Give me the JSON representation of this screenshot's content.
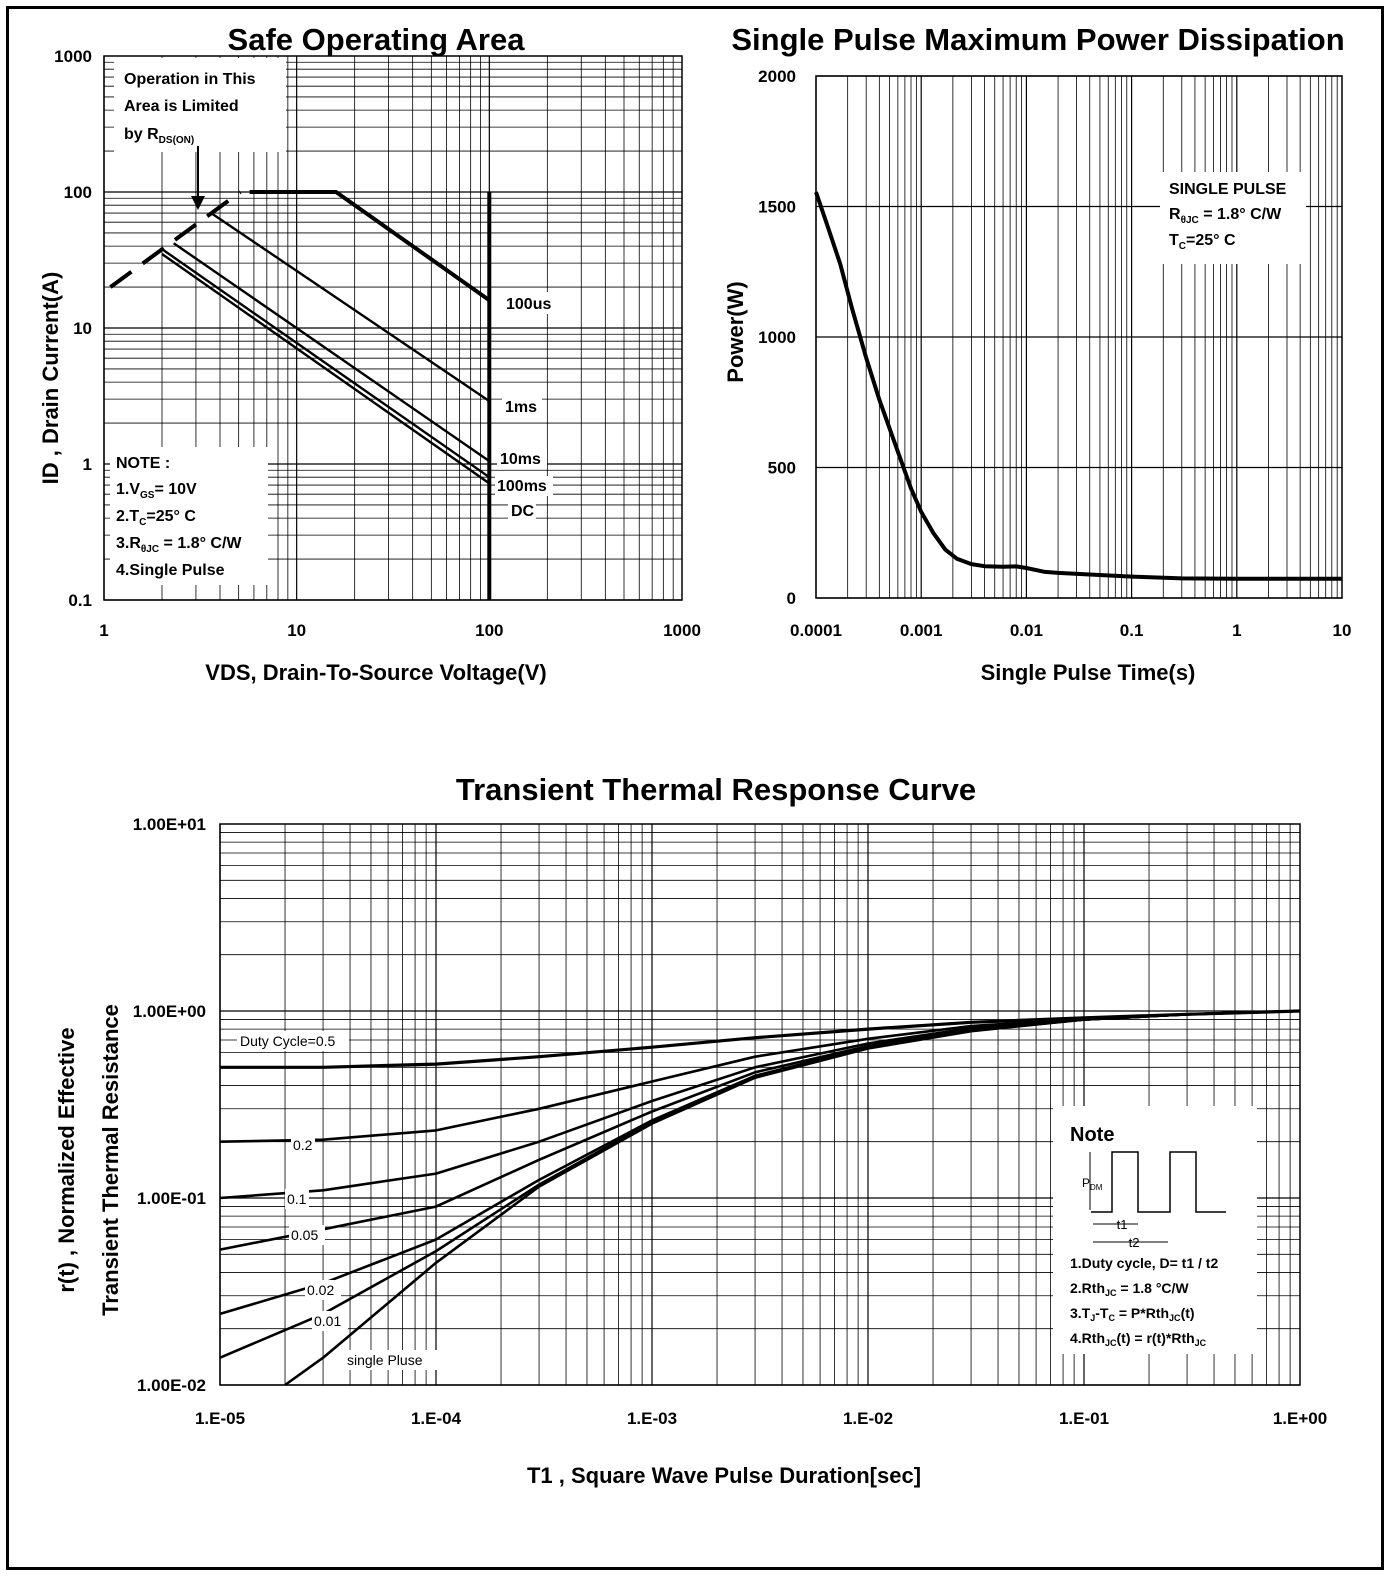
{
  "chart_data": [
    {
      "type": "line",
      "title": "Safe Operating Area",
      "xlabel": "VDS, Drain-To-Source Voltage(V)",
      "ylabel": "ID , Drain Current(A)",
      "xscale": "log",
      "yscale": "log",
      "xlim": [
        1,
        1000
      ],
      "ylim": [
        0.1,
        1000
      ],
      "xtick_labels": [
        "1",
        "10",
        "100",
        "1000"
      ],
      "ytick_labels": [
        "0.1",
        "1",
        "10",
        "100",
        "1000"
      ],
      "grid": true,
      "series": [
        {
          "name": "RDS(ON) limit",
          "style": "dashed",
          "x": [
            1.08,
            5.1
          ],
          "y": [
            20,
            100
          ]
        },
        {
          "name": "100us",
          "x": [
            5.7,
            16,
            100
          ],
          "y": [
            100,
            100,
            16
          ]
        },
        {
          "name": "1ms",
          "x": [
            3.6,
            100
          ],
          "y": [
            70,
            2.9
          ]
        },
        {
          "name": "10ms",
          "x": [
            2.3,
            100
          ],
          "y": [
            42,
            1.05
          ]
        },
        {
          "name": "100ms",
          "x": [
            2.0,
            100
          ],
          "y": [
            38,
            0.8
          ]
        },
        {
          "name": "DC",
          "x": [
            2.0,
            100
          ],
          "y": [
            35,
            0.72
          ]
        },
        {
          "name": "Voltage limit",
          "x": [
            100,
            100
          ],
          "y": [
            100,
            0.1
          ]
        }
      ],
      "annotations": {
        "limit_note": [
          "Operation in This",
          "Area is Limited",
          "by R"
        ],
        "limit_note_sub": "DS(ON)",
        "note_title": "NOTE :",
        "note_lines": [
          "1.V",
          "2.T",
          "3.R",
          "4.Single Pulse"
        ],
        "note_subs": [
          "GS",
          "C",
          "θJC"
        ],
        "note_values": [
          "= 10V",
          "=25° C",
          " = 1.8° C/W"
        ],
        "curve_labels": [
          "100us",
          "1ms",
          "10ms",
          "100ms",
          "DC"
        ]
      }
    },
    {
      "type": "line",
      "title": "Single Pulse Maximum Power Dissipation",
      "xlabel": "Single Pulse Time(s)",
      "ylabel": "Power(W)",
      "xscale": "log",
      "xlim": [
        0.0001,
        10
      ],
      "ylim": [
        0,
        2000
      ],
      "xtick_labels": [
        "0.0001",
        "0.001",
        "0.01",
        "0.1",
        "1",
        "10"
      ],
      "ytick_labels": [
        "0",
        "500",
        "1000",
        "1500",
        "2000"
      ],
      "grid": true,
      "series": [
        {
          "x": [
            0.0001,
            0.00013,
            0.00017,
            0.00022,
            0.0003,
            0.0004,
            0.0006,
            0.0008,
            0.001,
            0.0013,
            0.0017,
            0.0022,
            0.003,
            0.004,
            0.006,
            0.008,
            0.01,
            0.015,
            0.02,
            0.04,
            0.1,
            0.3,
            1,
            3,
            10
          ],
          "y": [
            1555,
            1420,
            1280,
            1110,
            920,
            760,
            560,
            420,
            330,
            250,
            185,
            150,
            130,
            122,
            120,
            121,
            115,
            100,
            96,
            90,
            82,
            75,
            74,
            74,
            74
          ]
        }
      ],
      "annotations": {
        "note_lines": [
          "SINGLE PULSE",
          "R",
          "T"
        ],
        "note_subs": [
          "θJC",
          "C"
        ],
        "note_values": [
          " = 1.8° C/W",
          "=25° C"
        ]
      }
    },
    {
      "type": "line",
      "title": "Transient Thermal Response Curve",
      "xlabel": "T1 , Square Wave Pulse Duration[sec]",
      "ylabel": [
        "r(t) , Normalized Effective",
        "Transient Thermal Resistance"
      ],
      "xscale": "log",
      "yscale": "log",
      "xlim": [
        1e-05,
        1
      ],
      "ylim": [
        0.01,
        10
      ],
      "xtick_labels": [
        "1.E-05",
        "1.E-04",
        "1.E-03",
        "1.E-02",
        "1.E-01",
        "1.E+00"
      ],
      "ytick_labels": [
        "1.00E-02",
        "1.00E-01",
        "1.00E+00",
        "1.00E+01"
      ],
      "grid": true,
      "series": [
        {
          "name": "Duty Cycle=0.5",
          "x": [
            1e-05,
            3e-05,
            0.0001,
            0.0003,
            0.001,
            0.003,
            0.01,
            0.03,
            0.1,
            0.3,
            1
          ],
          "y": [
            0.5,
            0.5,
            0.52,
            0.57,
            0.64,
            0.72,
            0.8,
            0.87,
            0.92,
            0.96,
            1.0
          ]
        },
        {
          "name": "0.2",
          "x": [
            1e-05,
            3e-05,
            0.0001,
            0.0003,
            0.001,
            0.003,
            0.01,
            0.03,
            0.1,
            0.3,
            1
          ],
          "y": [
            0.2,
            0.205,
            0.23,
            0.3,
            0.42,
            0.57,
            0.71,
            0.83,
            0.91,
            0.96,
            1.0
          ]
        },
        {
          "name": "0.1",
          "x": [
            1e-05,
            3e-05,
            0.0001,
            0.0003,
            0.001,
            0.003,
            0.01,
            0.03,
            0.1,
            0.3,
            1
          ],
          "y": [
            0.1,
            0.11,
            0.135,
            0.2,
            0.33,
            0.5,
            0.67,
            0.81,
            0.9,
            0.96,
            1.0
          ]
        },
        {
          "name": "0.05",
          "x": [
            1e-05,
            3e-05,
            0.0001,
            0.0003,
            0.001,
            0.003,
            0.01,
            0.03,
            0.1,
            0.3,
            1
          ],
          "y": [
            0.053,
            0.068,
            0.09,
            0.16,
            0.29,
            0.47,
            0.65,
            0.8,
            0.9,
            0.96,
            1.0
          ]
        },
        {
          "name": "0.02",
          "x": [
            1e-05,
            3e-05,
            0.0001,
            0.0003,
            0.001,
            0.003,
            0.01,
            0.03,
            0.1,
            0.3,
            1
          ],
          "y": [
            0.024,
            0.035,
            0.06,
            0.125,
            0.26,
            0.45,
            0.64,
            0.79,
            0.9,
            0.96,
            1.0
          ]
        },
        {
          "name": "0.01",
          "x": [
            1e-05,
            3e-05,
            0.0001,
            0.0003,
            0.001,
            0.003,
            0.01,
            0.03,
            0.1,
            0.3,
            1
          ],
          "y": [
            0.014,
            0.024,
            0.052,
            0.118,
            0.255,
            0.445,
            0.635,
            0.785,
            0.9,
            0.96,
            1.0
          ]
        },
        {
          "name": "single Pluse",
          "x": [
            2e-05,
            3e-05,
            0.0001,
            0.0003,
            0.001,
            0.003,
            0.01,
            0.03,
            0.1,
            0.3,
            1
          ],
          "y": [
            0.01,
            0.014,
            0.045,
            0.115,
            0.25,
            0.44,
            0.63,
            0.78,
            0.9,
            0.96,
            1.0
          ]
        }
      ],
      "annotations": {
        "note_title": "Note",
        "pdm_label": "P",
        "pdm_sub": "DM",
        "t1": "t1",
        "t2": "t2",
        "note_lines": [
          {
            "parts": [
              "1.Duty cycle, D= t1 / t2"
            ],
            "subs": []
          },
          {
            "parts": [
              "2.Rth",
              " = 1.8 °C/W"
            ],
            "subs": [
              "JC"
            ]
          },
          {
            "parts": [
              "3.T",
              "-T",
              " = P*Rth",
              "(t)"
            ],
            "subs": [
              "J",
              "C",
              "JC"
            ]
          },
          {
            "parts": [
              "4.Rth",
              "(t) = r(t)*Rth",
              ""
            ],
            "subs": [
              "JC",
              "JC"
            ]
          }
        ]
      }
    }
  ]
}
